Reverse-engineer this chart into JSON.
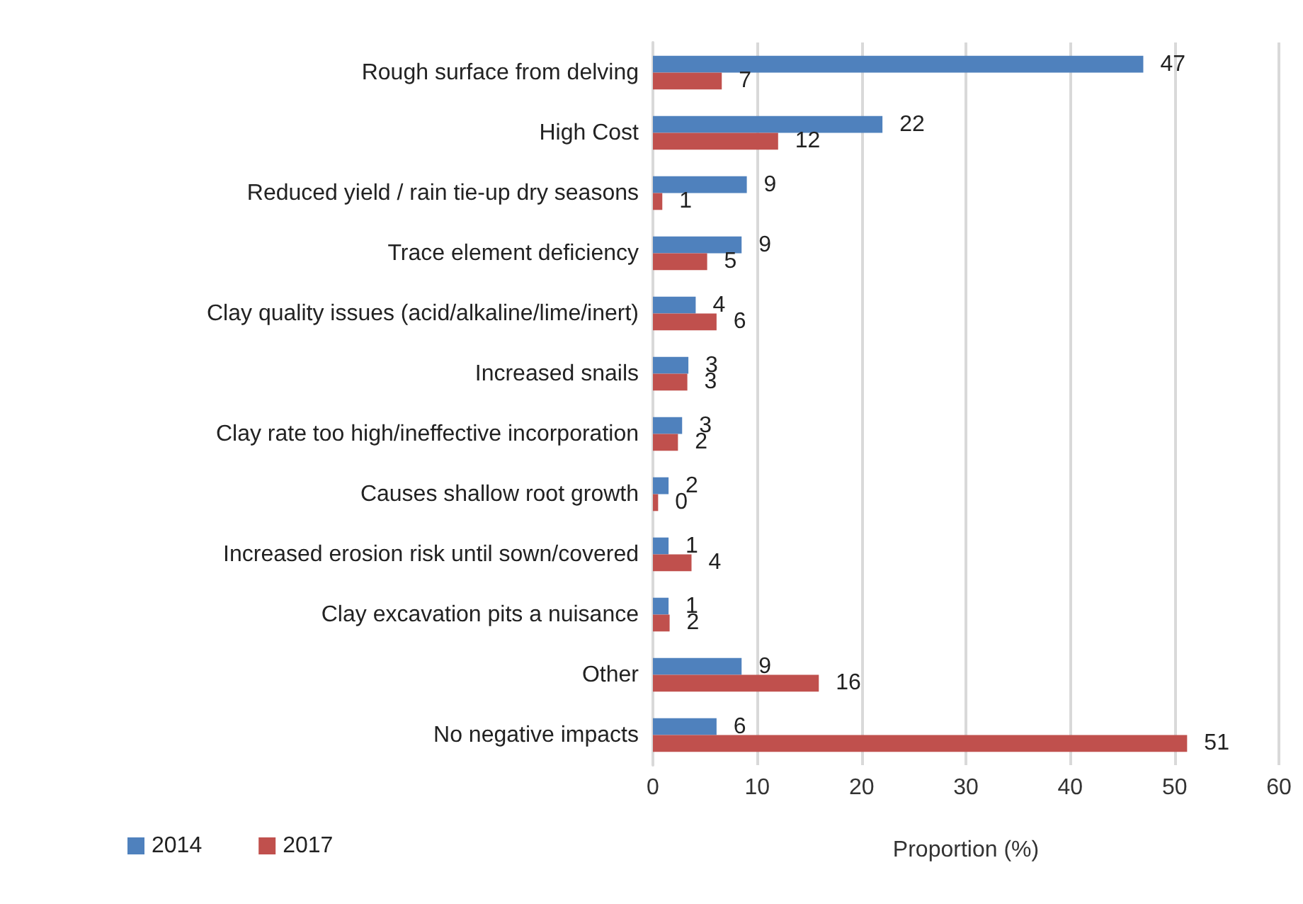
{
  "chart_data": {
    "type": "bar",
    "orientation": "horizontal",
    "xlabel": "Proportion (%)",
    "categories": [
      "Rough surface from delving",
      "High Cost",
      "Reduced yield / rain tie-up dry seasons",
      "Trace element deficiency",
      "Clay quality issues (acid/alkaline/lime/inert)",
      "Increased snails",
      "Clay rate too high/ineffective incorporation",
      "Causes shallow root growth",
      "Increased erosion risk until sown/covered",
      "Clay excavation pits a nuisance",
      "Other",
      "No negative impacts"
    ],
    "series": [
      {
        "name": "2014",
        "color": "#4f81bd",
        "values": [
          47,
          22,
          9,
          8.5,
          4.1,
          3.4,
          2.8,
          1.5,
          1.5,
          1.5,
          8.5,
          6.1
        ],
        "value_labels": [
          "47",
          "22",
          "9",
          "9",
          "4",
          "3",
          "3",
          "2",
          "1",
          "1",
          "9",
          "6"
        ]
      },
      {
        "name": "2017",
        "color": "#c0504d",
        "values": [
          6.6,
          12,
          0.9,
          5.2,
          6.1,
          3.3,
          2.4,
          0.5,
          3.7,
          1.6,
          15.9,
          51.2
        ],
        "value_labels": [
          "7",
          "12",
          "1",
          "5",
          "6",
          "3",
          "2",
          "0",
          "4",
          "2",
          "16",
          "51"
        ]
      }
    ],
    "xlim": [
      0,
      60
    ],
    "xticks": [
      0,
      10,
      20,
      30,
      40,
      50,
      60
    ],
    "grid": "x",
    "legend": "bottom left"
  }
}
